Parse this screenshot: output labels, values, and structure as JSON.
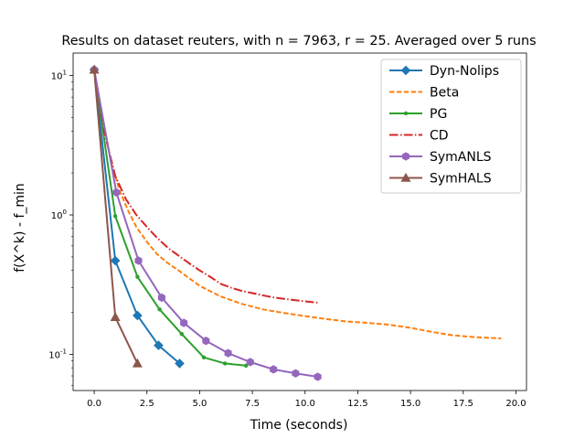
{
  "chart_data": {
    "type": "line",
    "title": "Results on dataset reuters, with n = 7963, r = 25. Averaged over 5 runs",
    "xlabel": "Time (seconds)",
    "ylabel": "f(X^k) - f_min",
    "xlim": [
      -1.0,
      20.5
    ],
    "ylim": [
      0.055,
      14.5
    ],
    "yscale": "log",
    "grid": false,
    "legend_position": "top-right",
    "x_ticks": [
      0,
      2.5,
      5,
      7.5,
      10,
      12.5,
      15,
      17.5,
      20
    ],
    "x_tick_labels": [
      "0.0",
      "2.5",
      "5.0",
      "7.5",
      "10.0",
      "12.5",
      "15.0",
      "17.5",
      "20.0"
    ],
    "y_major_ticks": [
      0.1,
      1,
      10
    ],
    "y_major_tick_labels": [
      "10^-1",
      "10^0",
      "10^1"
    ],
    "series": [
      {
        "name": "Dyn-Nolips",
        "color": "#1f77b4",
        "line_style": "solid",
        "marker": "diamond",
        "x": [
          0.0,
          1.0,
          2.05,
          3.05,
          4.05
        ],
        "y": [
          11.0,
          0.47,
          0.19,
          0.116,
          0.086
        ]
      },
      {
        "name": "Beta",
        "color": "#ff7f0e",
        "line_style": "dashed",
        "marker": "none",
        "x": [
          0.0,
          0.4,
          0.8,
          1.2,
          1.6,
          2.0,
          2.5,
          3.0,
          3.5,
          4.0,
          5.0,
          6.0,
          7.0,
          8.0,
          9.0,
          10.0,
          11.0,
          12.0,
          13.0,
          14.0,
          15.0,
          16.0,
          17.0,
          18.0,
          19.3
        ],
        "y": [
          11.0,
          5.0,
          2.4,
          1.5,
          1.08,
          0.82,
          0.64,
          0.52,
          0.45,
          0.4,
          0.31,
          0.26,
          0.23,
          0.21,
          0.198,
          0.188,
          0.179,
          0.172,
          0.168,
          0.163,
          0.155,
          0.145,
          0.137,
          0.133,
          0.13
        ]
      },
      {
        "name": "PG",
        "color": "#2ca02c",
        "line_style": "solid",
        "marker": "point",
        "x": [
          0.0,
          1.0,
          2.05,
          3.1,
          4.15,
          5.2,
          6.2,
          7.2
        ],
        "y": [
          11.0,
          0.98,
          0.36,
          0.21,
          0.14,
          0.095,
          0.086,
          0.083
        ]
      },
      {
        "name": "CD",
        "color": "#d62728",
        "line_style": "dashdot",
        "marker": "none",
        "x": [
          0.0,
          0.5,
          1.0,
          1.5,
          2.0,
          2.5,
          3.0,
          3.5,
          4.0,
          4.5,
          5.0,
          5.5,
          6.0,
          6.5,
          7.0,
          7.5,
          8.0,
          8.5,
          9.0,
          9.5,
          10.0,
          10.6
        ],
        "y": [
          11.0,
          3.8,
          1.9,
          1.3,
          1.0,
          0.82,
          0.68,
          0.58,
          0.51,
          0.45,
          0.4,
          0.36,
          0.32,
          0.3,
          0.285,
          0.275,
          0.265,
          0.256,
          0.25,
          0.245,
          0.24,
          0.235
        ]
      },
      {
        "name": "SymANLS",
        "color": "#9467bd",
        "line_style": "solid",
        "marker": "hexagon",
        "x": [
          0.0,
          1.05,
          2.1,
          3.2,
          4.25,
          5.3,
          6.35,
          7.4,
          8.5,
          9.55,
          10.6
        ],
        "y": [
          11.0,
          1.45,
          0.47,
          0.255,
          0.168,
          0.125,
          0.102,
          0.088,
          0.078,
          0.073,
          0.069
        ]
      },
      {
        "name": "SymHALS",
        "color": "#8c564b",
        "line_style": "solid",
        "marker": "triangle",
        "x": [
          0.0,
          1.0,
          2.05
        ],
        "y": [
          11.0,
          0.185,
          0.086
        ]
      }
    ]
  }
}
